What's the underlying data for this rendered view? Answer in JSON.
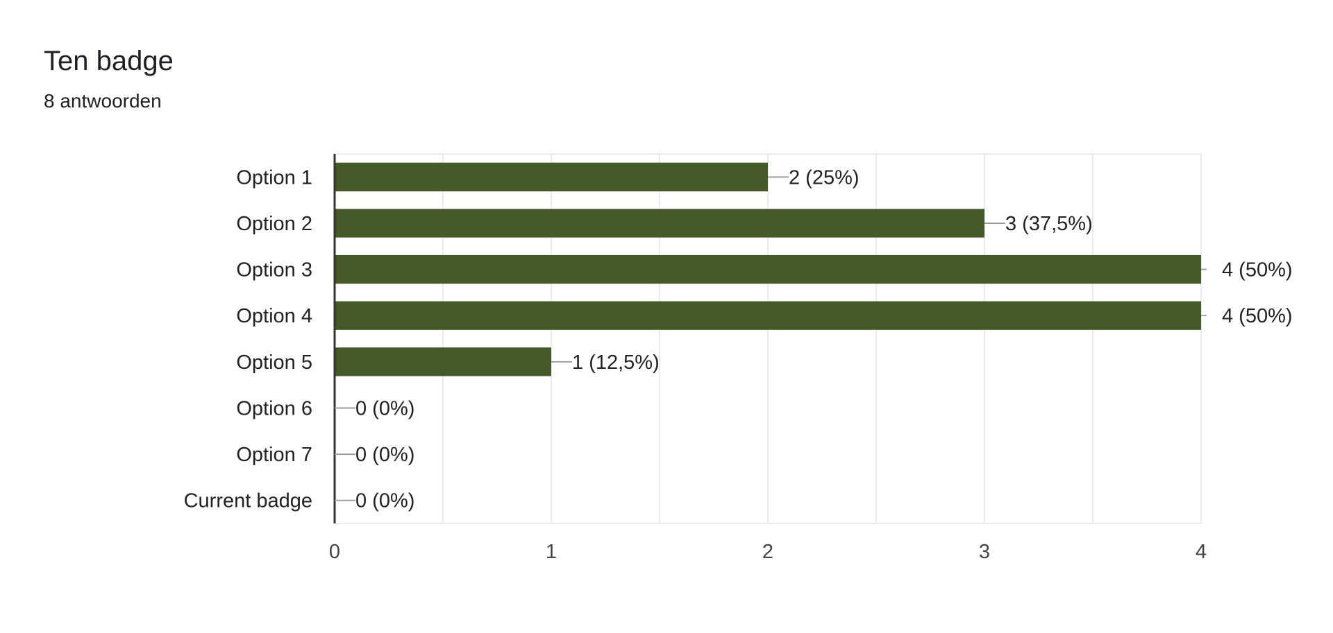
{
  "header": {
    "title": "Ten badge",
    "subtitle": "8 antwoorden"
  },
  "colors": {
    "bar": "#455a28",
    "gridline": "#ebebeb",
    "axis": "#333333",
    "leader": "#9e9e9e"
  },
  "chart_data": {
    "type": "bar",
    "orientation": "horizontal",
    "categories": [
      "Option 1",
      "Option 2",
      "Option 3",
      "Option 4",
      "Option 5",
      "Option 6",
      "Option 7",
      "Current badge"
    ],
    "values": [
      2,
      3,
      4,
      4,
      1,
      0,
      0,
      0
    ],
    "data_labels": [
      "2 (25%)",
      "3 (37,5%)",
      "4 (50%)",
      "4 (50%)",
      "1 (12,5%)",
      "0 (0%)",
      "0 (0%)",
      "0 (0%)"
    ],
    "xlim": [
      0,
      4
    ],
    "xticks": [
      "0",
      "1",
      "2",
      "3",
      "4"
    ],
    "grid": true,
    "legend": "none"
  }
}
